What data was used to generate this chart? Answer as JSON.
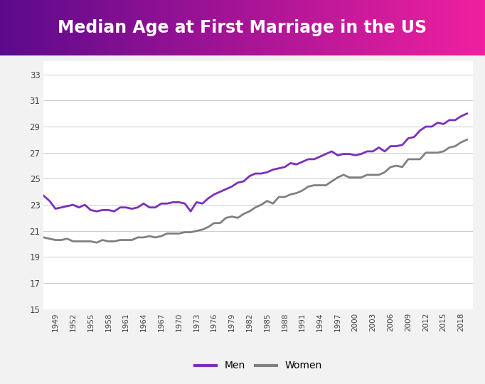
{
  "title": "Median Age at First Marriage in the US",
  "title_color": "#ffffff",
  "title_bg_start": "#5c0a8c",
  "title_bg_end": "#f020a0",
  "background_color": "#f2f2f2",
  "plot_bg_color": "#ffffff",
  "years": [
    1947,
    1948,
    1949,
    1950,
    1951,
    1952,
    1953,
    1954,
    1955,
    1956,
    1957,
    1958,
    1959,
    1960,
    1961,
    1962,
    1963,
    1964,
    1965,
    1966,
    1967,
    1968,
    1969,
    1970,
    1971,
    1972,
    1973,
    1974,
    1975,
    1976,
    1977,
    1978,
    1979,
    1980,
    1981,
    1982,
    1983,
    1984,
    1985,
    1986,
    1987,
    1988,
    1989,
    1990,
    1991,
    1992,
    1993,
    1994,
    1995,
    1996,
    1997,
    1998,
    1999,
    2000,
    2001,
    2002,
    2003,
    2004,
    2005,
    2006,
    2007,
    2008,
    2009,
    2010,
    2011,
    2012,
    2013,
    2014,
    2015,
    2016,
    2017,
    2018,
    2019
  ],
  "men": [
    23.7,
    23.3,
    22.7,
    22.8,
    22.9,
    23.0,
    22.8,
    23.0,
    22.6,
    22.5,
    22.6,
    22.6,
    22.5,
    22.8,
    22.8,
    22.7,
    22.8,
    23.1,
    22.8,
    22.8,
    23.1,
    23.1,
    23.2,
    23.2,
    23.1,
    22.5,
    23.2,
    23.1,
    23.5,
    23.8,
    24.0,
    24.2,
    24.4,
    24.7,
    24.8,
    25.2,
    25.4,
    25.4,
    25.5,
    25.7,
    25.8,
    25.9,
    26.2,
    26.1,
    26.3,
    26.5,
    26.5,
    26.7,
    26.9,
    27.1,
    26.8,
    26.9,
    26.9,
    26.8,
    26.9,
    27.1,
    27.1,
    27.4,
    27.1,
    27.5,
    27.5,
    27.6,
    28.1,
    28.2,
    28.7,
    29.0,
    29.0,
    29.3,
    29.2,
    29.5,
    29.5,
    29.8,
    30.0
  ],
  "women": [
    20.5,
    20.4,
    20.3,
    20.3,
    20.4,
    20.2,
    20.2,
    20.2,
    20.2,
    20.1,
    20.3,
    20.2,
    20.2,
    20.3,
    20.3,
    20.3,
    20.5,
    20.5,
    20.6,
    20.5,
    20.6,
    20.8,
    20.8,
    20.8,
    20.9,
    20.9,
    21.0,
    21.1,
    21.3,
    21.6,
    21.6,
    22.0,
    22.1,
    22.0,
    22.3,
    22.5,
    22.8,
    23.0,
    23.3,
    23.1,
    23.6,
    23.6,
    23.8,
    23.9,
    24.1,
    24.4,
    24.5,
    24.5,
    24.5,
    24.8,
    25.1,
    25.3,
    25.1,
    25.1,
    25.1,
    25.3,
    25.3,
    25.3,
    25.5,
    25.9,
    26.0,
    25.9,
    26.5,
    26.5,
    26.5,
    27.0,
    27.0,
    27.0,
    27.1,
    27.4,
    27.5,
    27.8,
    28.0
  ],
  "men_color": "#7b2fbe",
  "women_color": "#808080",
  "ylim": [
    15,
    34
  ],
  "yticks": [
    15,
    17,
    19,
    21,
    23,
    25,
    27,
    29,
    31,
    33
  ],
  "xtick_years": [
    1949,
    1952,
    1955,
    1958,
    1961,
    1964,
    1967,
    1970,
    1973,
    1976,
    1979,
    1982,
    1985,
    1988,
    1991,
    1994,
    1997,
    2000,
    2003,
    2006,
    2009,
    2012,
    2015,
    2018
  ],
  "line_width": 2.0,
  "legend_men": "Men",
  "legend_women": "Women",
  "title_fontsize": 17
}
